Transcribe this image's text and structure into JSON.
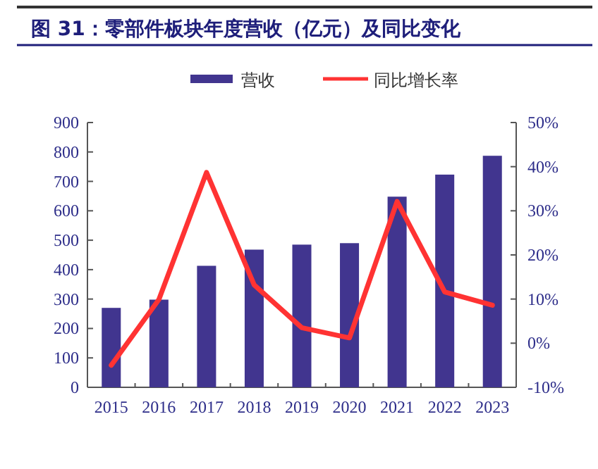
{
  "chart_data": {
    "type": "bar",
    "title": "图 31：零部件板块年度营收（亿元）及同比变化",
    "categories": [
      "2015",
      "2016",
      "2017",
      "2018",
      "2019",
      "2020",
      "2021",
      "2022",
      "2023"
    ],
    "series": [
      {
        "name": "营收",
        "color": "#41358f",
        "values": [
          270,
          298,
          413,
          468,
          485,
          490,
          648,
          723,
          787
        ]
      },
      {
        "name": "同比增长率",
        "type": "line",
        "axis": "y2",
        "color": "#ff3333",
        "values": [
          -5.0,
          9.9,
          38.7,
          13.2,
          3.5,
          1.2,
          32.1,
          11.6,
          8.6
        ]
      }
    ],
    "ylim": [
      0,
      900
    ],
    "yticks": [
      0,
      100,
      200,
      300,
      400,
      500,
      600,
      700,
      800,
      900
    ],
    "y2lim": [
      -10,
      50
    ],
    "y2ticks": [
      {
        "value": -10,
        "label": "-10%"
      },
      {
        "value": 0,
        "label": "0%"
      },
      {
        "value": 10,
        "label": "10%"
      },
      {
        "value": 20,
        "label": "20%"
      },
      {
        "value": 30,
        "label": "30%"
      },
      {
        "value": 40,
        "label": "40%"
      },
      {
        "value": 50,
        "label": "50%"
      }
    ],
    "legend": "top",
    "grid": false
  }
}
